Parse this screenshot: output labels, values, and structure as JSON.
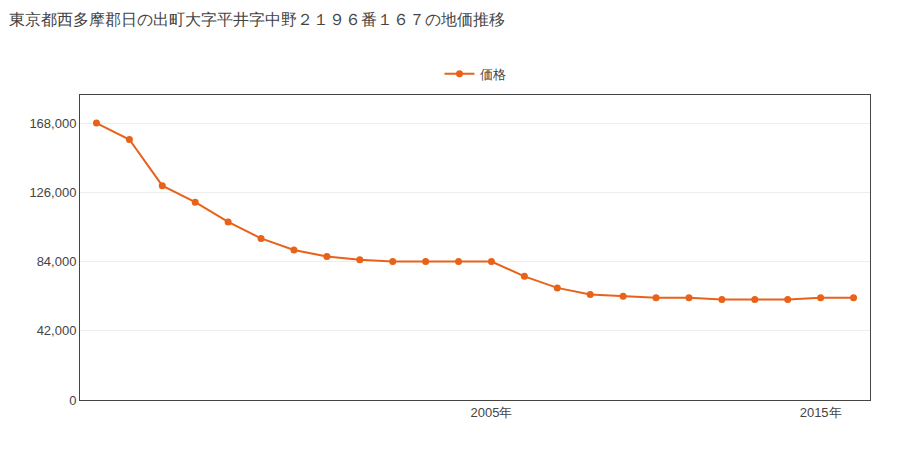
{
  "chart_data": {
    "type": "line",
    "title": "東京都西多摩郡日の出町大字平井字中野２１９６番１６７の地価推移",
    "x": [
      1993,
      1994,
      1995,
      1996,
      1997,
      1998,
      1999,
      2000,
      2001,
      2002,
      2003,
      2004,
      2005,
      2006,
      2007,
      2008,
      2009,
      2010,
      2011,
      2012,
      2013,
      2014,
      2015,
      2016
    ],
    "series": [
      {
        "name": "価格",
        "color": "#E8621A",
        "marker": "circle",
        "values": [
          168000,
          158000,
          130000,
          120000,
          108000,
          98000,
          91000,
          87000,
          85000,
          84000,
          84000,
          84000,
          84000,
          75000,
          68000,
          64000,
          63000,
          62000,
          62000,
          61000,
          61000,
          61000,
          62000,
          62000
        ]
      }
    ],
    "xlim": [
      1992.5,
      2016.5
    ],
    "xticks": [
      {
        "value": 2005,
        "label": "2005年"
      },
      {
        "value": 2015,
        "label": "2015年"
      }
    ],
    "ylim": [
      0,
      185000
    ],
    "yticks": [
      0,
      {
        "value": 42000,
        "label": "42,000"
      },
      {
        "value": 84000,
        "label": "84,000"
      },
      {
        "value": 126000,
        "label": "126,000"
      },
      {
        "value": 168000,
        "label": "168,000"
      }
    ],
    "grid": true,
    "legend": "top"
  }
}
